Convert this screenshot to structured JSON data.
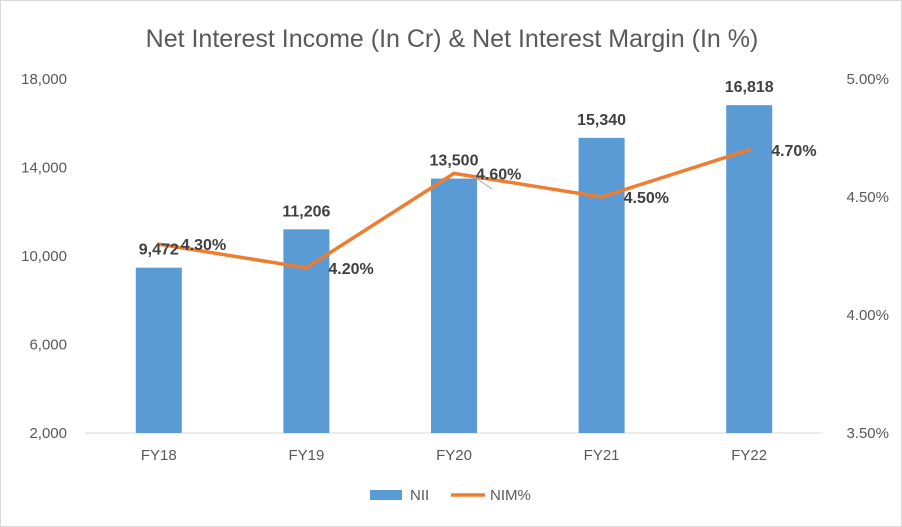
{
  "chart_data": {
    "type": "bar",
    "title": "Net Interest Income (In Cr) & Net Interest Margin (In %)",
    "categories": [
      "FY18",
      "FY19",
      "FY20",
      "FY21",
      "FY22"
    ],
    "series": [
      {
        "name": "NII",
        "type": "bar",
        "axis": "left",
        "color": "#5b9bd5",
        "values": [
          9472,
          11206,
          13500,
          15340,
          16818
        ],
        "labels": [
          "9,472",
          "11,206",
          "13,500",
          "15,340",
          "16,818"
        ]
      },
      {
        "name": "NIM%",
        "type": "line",
        "axis": "right",
        "color": "#ed7d31",
        "values": [
          4.3,
          4.2,
          4.6,
          4.5,
          4.7
        ],
        "labels": [
          "4.30%",
          "4.20%",
          "4.60%",
          "4.50%",
          "4.70%"
        ]
      }
    ],
    "y_left": {
      "ylim": [
        2000,
        18000
      ],
      "ticks": [
        2000,
        6000,
        10000,
        14000,
        18000
      ],
      "tick_labels": [
        "2,000",
        "6,000",
        "10,000",
        "14,000",
        "18,000"
      ]
    },
    "y_right": {
      "ylim": [
        3.5,
        5.0
      ],
      "ticks": [
        3.5,
        4.0,
        4.5,
        5.0
      ],
      "tick_labels": [
        "3.50%",
        "4.00%",
        "4.50%",
        "5.00%"
      ]
    },
    "grid": false,
    "legend": "bottom-center"
  }
}
